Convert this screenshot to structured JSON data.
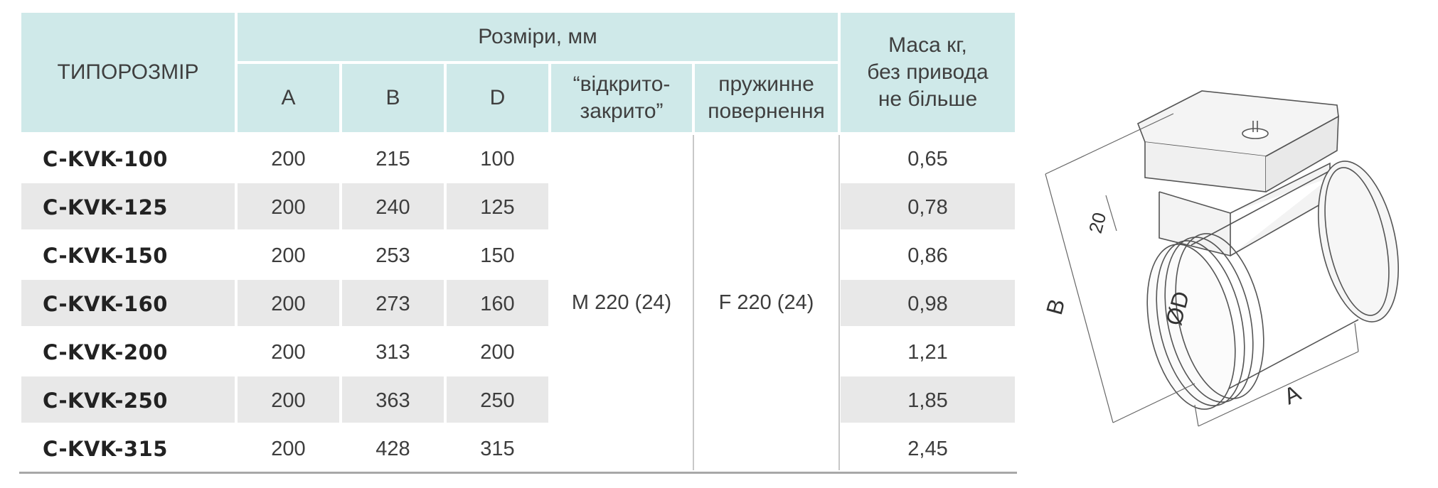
{
  "table": {
    "header": {
      "type_size": "ТИПОРОЗМІР",
      "dimensions": "Розміри, мм",
      "col_a": "A",
      "col_b": "B",
      "col_d": "D",
      "open_close": "“відкрито-\nзакрито”",
      "spring_return": "пружинне\nповернення",
      "mass": "Маса кг,\nбез привода\nне більше"
    },
    "actuator_open_close": "M 220 (24)",
    "actuator_spring_return": "F 220 (24)",
    "rows": [
      {
        "name": "C-KVK-100",
        "a": "200",
        "b": "215",
        "d": "100",
        "mass": "0,65"
      },
      {
        "name": "C-KVK-125",
        "a": "200",
        "b": "240",
        "d": "125",
        "mass": "0,78"
      },
      {
        "name": "C-KVK-150",
        "a": "200",
        "b": "253",
        "d": "150",
        "mass": "0,86"
      },
      {
        "name": "C-KVK-160",
        "a": "200",
        "b": "273",
        "d": "160",
        "mass": "0,98"
      },
      {
        "name": "C-KVK-200",
        "a": "200",
        "b": "313",
        "d": "200",
        "mass": "1,21"
      },
      {
        "name": "C-KVK-250",
        "a": "200",
        "b": "363",
        "d": "250",
        "mass": "1,85"
      },
      {
        "name": "C-KVK-315",
        "a": "200",
        "b": "428",
        "d": "315",
        "mass": "2,45"
      }
    ]
  },
  "drawing": {
    "label_b": "B",
    "label_20": "20",
    "label_d": "ØD",
    "label_a": "A"
  },
  "colors": {
    "header_bg": "#cfe9e9",
    "stripe_bg": "#e8e8e8"
  }
}
